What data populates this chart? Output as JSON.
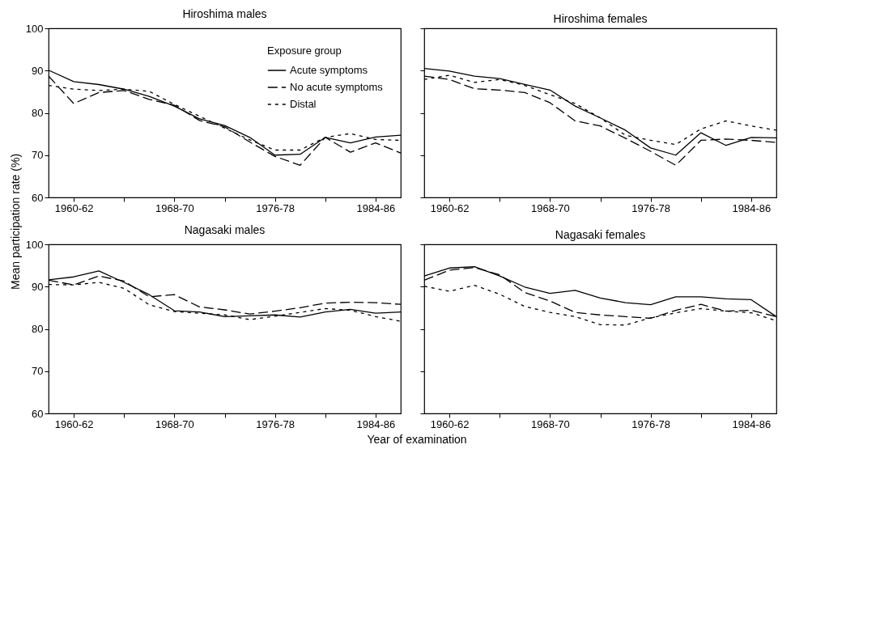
{
  "chart_data": [
    {
      "type": "line",
      "title": "Hiroshima males",
      "ylabel": "Mean participation rate (%)",
      "xlabel": "Year of examination",
      "legend_title": "Exposure group",
      "legend": "top right",
      "categories": [
        null,
        "1960-62",
        null,
        null,
        null,
        "1968-70",
        null,
        null,
        null,
        "1976-78",
        null,
        null,
        null,
        "1984-86",
        null
      ],
      "ylim": [
        60,
        100
      ],
      "yticks": [
        60,
        70,
        80,
        90,
        100
      ],
      "series": [
        {
          "name": "Acute symptoms",
          "color": "#000000",
          "line_style": "solid",
          "values": [
            90.1,
            87.4,
            86.7,
            85.6,
            83.9,
            81.6,
            78.6,
            77.0,
            74.2,
            70.0,
            70.2,
            74.2,
            72.9,
            74.3,
            74.7
          ]
        },
        {
          "name": "No acute symptoms",
          "color": "#000000",
          "line_style": "dashed",
          "values": [
            88.7,
            82.2,
            84.8,
            85.3,
            83.2,
            81.8,
            78.2,
            76.7,
            73.1,
            69.7,
            67.6,
            74.2,
            70.7,
            72.9,
            70.5
          ]
        },
        {
          "name": "Distal",
          "color": "#000000",
          "line_style": "dotted",
          "values": [
            86.5,
            85.6,
            85.3,
            85.6,
            85.1,
            82.0,
            79.2,
            76.4,
            73.6,
            71.2,
            71.2,
            74.2,
            75.1,
            73.7,
            73.5
          ]
        }
      ]
    },
    {
      "type": "line",
      "title": "Hiroshima females",
      "tick_labels": "x",
      "categories": [
        null,
        "1960-62",
        null,
        null,
        null,
        "1968-70",
        null,
        null,
        null,
        "1976-78",
        null,
        null,
        null,
        "1984-86",
        null
      ],
      "ylim": [
        60,
        100
      ],
      "yticks": [
        60,
        70,
        80,
        90,
        100
      ],
      "series": [
        {
          "color": "#000000",
          "line_style": "solid",
          "values": [
            90.5,
            89.9,
            88.7,
            88.1,
            86.7,
            85.4,
            81.6,
            78.8,
            75.9,
            71.7,
            70.0,
            75.3,
            72.3,
            74.2,
            74.1
          ]
        },
        {
          "color": "#000000",
          "line_style": "dashed",
          "values": [
            88.7,
            87.9,
            85.7,
            85.4,
            84.8,
            82.4,
            78.1,
            76.9,
            74.0,
            70.9,
            67.6,
            73.5,
            73.8,
            73.5,
            73.0
          ]
        },
        {
          "color": "#000000",
          "line_style": "dotted",
          "values": [
            87.9,
            88.9,
            87.2,
            87.9,
            86.5,
            84.3,
            82.2,
            78.8,
            74.7,
            73.5,
            72.5,
            76.2,
            78.1,
            76.9,
            75.9
          ]
        }
      ]
    },
    {
      "type": "line",
      "title": "Nagasaki males",
      "categories": [
        null,
        "1960-62",
        null,
        null,
        null,
        "1968-70",
        null,
        null,
        null,
        "1976-78",
        null,
        null,
        null,
        "1984-86",
        null
      ],
      "ylim": [
        60,
        100
      ],
      "yticks": [
        60,
        70,
        80,
        90,
        100
      ],
      "series": [
        {
          "color": "#000000",
          "line_style": "solid",
          "values": [
            91.6,
            92.3,
            93.7,
            91.0,
            88.1,
            84.3,
            84.0,
            82.9,
            83.1,
            83.3,
            82.8,
            84.0,
            84.6,
            83.7,
            84.0
          ]
        },
        {
          "color": "#000000",
          "line_style": "dashed",
          "values": [
            91.5,
            90.4,
            92.5,
            91.3,
            87.6,
            88.1,
            85.2,
            84.5,
            83.5,
            84.2,
            85.0,
            86.1,
            86.3,
            86.2,
            85.8
          ]
        },
        {
          "color": "#000000",
          "line_style": "dotted",
          "values": [
            90.5,
            90.4,
            91.0,
            89.6,
            85.7,
            84.1,
            83.7,
            83.3,
            82.2,
            83.0,
            83.9,
            84.8,
            84.4,
            82.9,
            81.8
          ]
        }
      ]
    },
    {
      "type": "line",
      "title": "Nagasaki females",
      "tick_labels": "x",
      "categories": [
        null,
        "1960-62",
        null,
        null,
        null,
        "1968-70",
        null,
        null,
        null,
        "1976-78",
        null,
        null,
        null,
        "1984-86",
        null
      ],
      "ylim": [
        60,
        100
      ],
      "yticks": [
        60,
        70,
        80,
        90,
        100
      ],
      "series": [
        {
          "color": "#000000",
          "line_style": "solid",
          "values": [
            92.5,
            94.4,
            94.7,
            92.5,
            89.9,
            88.4,
            89.1,
            87.3,
            86.2,
            85.7,
            87.6,
            87.6,
            87.1,
            86.9,
            82.9
          ]
        },
        {
          "color": "#000000",
          "line_style": "dashed",
          "values": [
            91.5,
            93.9,
            94.5,
            92.8,
            88.6,
            86.6,
            83.9,
            83.3,
            82.9,
            82.5,
            84.4,
            85.8,
            84.2,
            84.4,
            82.9
          ]
        },
        {
          "color": "#000000",
          "line_style": "dotted",
          "values": [
            90.1,
            88.9,
            90.3,
            88.2,
            85.3,
            83.9,
            82.9,
            81.0,
            80.9,
            82.6,
            83.8,
            84.8,
            84.2,
            83.8,
            81.9
          ]
        }
      ]
    }
  ]
}
